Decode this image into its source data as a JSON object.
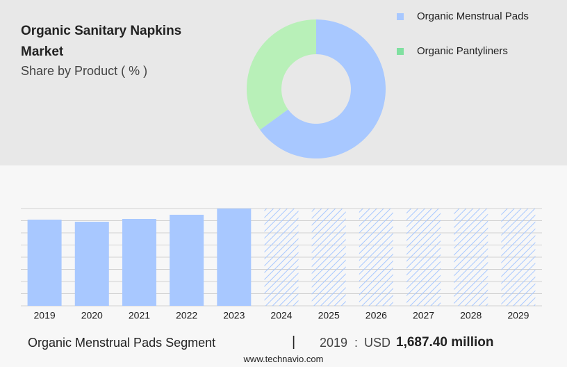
{
  "chart_data": [
    {
      "type": "donut",
      "title": "Organic Sanitary Napkins Market",
      "subtitle": "Share by Product ( % )",
      "categories": [
        "Organic Menstrual Pads",
        "Organic Pantyliners"
      ],
      "values": [
        65,
        35
      ],
      "colors": [
        "#a8c8ff",
        "#b8f0b8"
      ],
      "legend_colors": [
        "#a8c8ff",
        "#80e0a0"
      ],
      "legend": "top-right"
    },
    {
      "type": "bar",
      "categories": [
        "2019",
        "2020",
        "2021",
        "2022",
        "2023",
        "2024",
        "2025",
        "2026",
        "2027",
        "2028",
        "2029"
      ],
      "values": [
        1687.4,
        1646,
        1701,
        1783,
        1905,
        null,
        null,
        null,
        null,
        null,
        null
      ],
      "value_labels": [
        "1,687.40 million",
        null,
        null,
        null,
        null,
        null,
        null,
        null,
        null,
        null,
        null
      ],
      "color": "#a8c8ff",
      "ylim": [
        0,
        1905
      ],
      "grid": true
    }
  ],
  "footer": {
    "segment": "Organic Menstrual Pads Segment",
    "separator": "|",
    "colon": ":",
    "currency": "USD",
    "source": "www.technavio.com"
  }
}
